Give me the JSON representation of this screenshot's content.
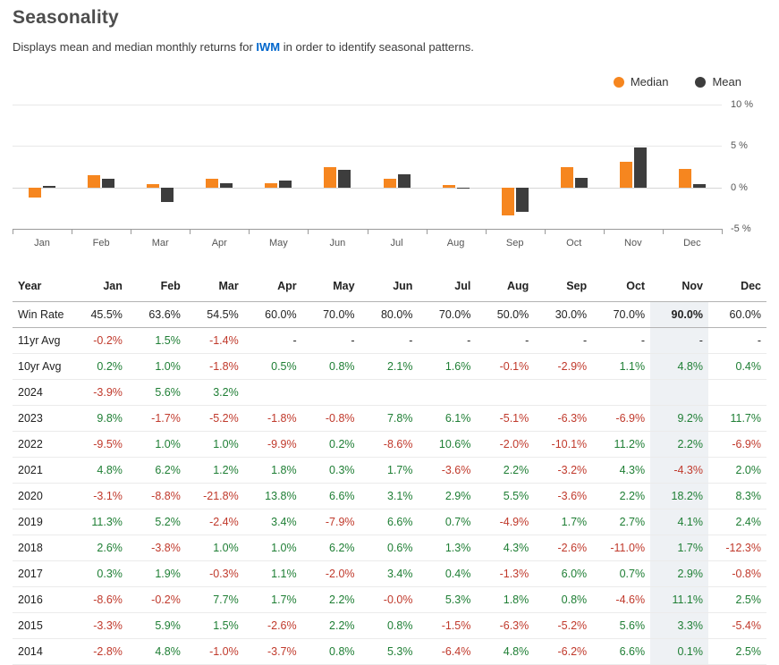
{
  "header": {
    "title": "Seasonality",
    "subtitle_before": "Displays mean and median monthly returns for ",
    "symbol": "IWM",
    "subtitle_after": " in order to identify seasonal patterns."
  },
  "colors": {
    "median": "#f6861f",
    "mean": "#3d3d3d",
    "negative": "#c0392b",
    "positive": "#1e7e34",
    "link": "#0066cc",
    "column_highlight": "#eef1f4"
  },
  "legend": [
    {
      "label": "Median",
      "color": "#f6861f"
    },
    {
      "label": "Mean",
      "color": "#3d3d3d"
    }
  ],
  "chart_data": {
    "type": "bar",
    "title": "Seasonality",
    "unit": "%",
    "categories": [
      "Jan",
      "Feb",
      "Mar",
      "Apr",
      "May",
      "Jun",
      "Jul",
      "Aug",
      "Sep",
      "Oct",
      "Nov",
      "Dec"
    ],
    "series": [
      {
        "name": "Median",
        "color": "#f6861f",
        "values": [
          -1.25,
          1.45,
          0.35,
          1.05,
          0.55,
          2.4,
          1.0,
          0.25,
          -3.4,
          2.45,
          3.1,
          2.2
        ]
      },
      {
        "name": "Mean",
        "color": "#3d3d3d",
        "values": [
          0.2,
          1.0,
          -1.8,
          0.5,
          0.8,
          2.1,
          1.6,
          -0.1,
          -2.9,
          1.1,
          4.8,
          0.4
        ]
      }
    ],
    "ylim": [
      -5,
      10
    ],
    "yticks": [
      {
        "value": 10,
        "label": "10 %"
      },
      {
        "value": 5,
        "label": "5 %"
      },
      {
        "value": 0,
        "label": "0 %"
      },
      {
        "value": -5,
        "label": "-5 %"
      }
    ],
    "grid": true,
    "legend_position": "top-right",
    "xlabel": "",
    "ylabel": ""
  },
  "table": {
    "highlight_column": "Nov",
    "columns": [
      "Year",
      "Jan",
      "Feb",
      "Mar",
      "Apr",
      "May",
      "Jun",
      "Jul",
      "Aug",
      "Sep",
      "Oct",
      "Nov",
      "Dec"
    ],
    "rows": [
      {
        "label": "Win Rate",
        "type": "winrate",
        "values": [
          "45.5%",
          "63.6%",
          "54.5%",
          "60.0%",
          "70.0%",
          "80.0%",
          "70.0%",
          "50.0%",
          "30.0%",
          "70.0%",
          "90.0%",
          "60.0%"
        ]
      },
      {
        "label": "11yr Avg",
        "values": [
          "-0.2%",
          "1.5%",
          "-1.4%",
          "-",
          "-",
          "-",
          "-",
          "-",
          "-",
          "-",
          "-",
          "-"
        ]
      },
      {
        "label": "10yr Avg",
        "values": [
          "0.2%",
          "1.0%",
          "-1.8%",
          "0.5%",
          "0.8%",
          "2.1%",
          "1.6%",
          "-0.1%",
          "-2.9%",
          "1.1%",
          "4.8%",
          "0.4%"
        ]
      },
      {
        "label": "2024",
        "values": [
          "-3.9%",
          "5.6%",
          "3.2%",
          "",
          "",
          "",
          "",
          "",
          "",
          "",
          "",
          ""
        ]
      },
      {
        "label": "2023",
        "values": [
          "9.8%",
          "-1.7%",
          "-5.2%",
          "-1.8%",
          "-0.8%",
          "7.8%",
          "6.1%",
          "-5.1%",
          "-6.3%",
          "-6.9%",
          "9.2%",
          "11.7%"
        ]
      },
      {
        "label": "2022",
        "values": [
          "-9.5%",
          "1.0%",
          "1.0%",
          "-9.9%",
          "0.2%",
          "-8.6%",
          "10.6%",
          "-2.0%",
          "-10.1%",
          "11.2%",
          "2.2%",
          "-6.9%"
        ]
      },
      {
        "label": "2021",
        "values": [
          "4.8%",
          "6.2%",
          "1.2%",
          "1.8%",
          "0.3%",
          "1.7%",
          "-3.6%",
          "2.2%",
          "-3.2%",
          "4.3%",
          "-4.3%",
          "2.0%"
        ]
      },
      {
        "label": "2020",
        "values": [
          "-3.1%",
          "-8.8%",
          "-21.8%",
          "13.8%",
          "6.6%",
          "3.1%",
          "2.9%",
          "5.5%",
          "-3.6%",
          "2.2%",
          "18.2%",
          "8.3%"
        ]
      },
      {
        "label": "2019",
        "values": [
          "11.3%",
          "5.2%",
          "-2.4%",
          "3.4%",
          "-7.9%",
          "6.6%",
          "0.7%",
          "-4.9%",
          "1.7%",
          "2.7%",
          "4.1%",
          "2.4%"
        ]
      },
      {
        "label": "2018",
        "values": [
          "2.6%",
          "-3.8%",
          "1.0%",
          "1.0%",
          "6.2%",
          "0.6%",
          "1.3%",
          "4.3%",
          "-2.6%",
          "-11.0%",
          "1.7%",
          "-12.3%"
        ]
      },
      {
        "label": "2017",
        "values": [
          "0.3%",
          "1.9%",
          "-0.3%",
          "1.1%",
          "-2.0%",
          "3.4%",
          "0.4%",
          "-1.3%",
          "6.0%",
          "0.7%",
          "2.9%",
          "-0.8%"
        ]
      },
      {
        "label": "2016",
        "values": [
          "-8.6%",
          "-0.2%",
          "7.7%",
          "1.7%",
          "2.2%",
          "-0.0%",
          "5.3%",
          "1.8%",
          "0.8%",
          "-4.6%",
          "11.1%",
          "2.5%"
        ]
      },
      {
        "label": "2015",
        "values": [
          "-3.3%",
          "5.9%",
          "1.5%",
          "-2.6%",
          "2.2%",
          "0.8%",
          "-1.5%",
          "-6.3%",
          "-5.2%",
          "5.6%",
          "3.3%",
          "-5.4%"
        ]
      },
      {
        "label": "2014",
        "values": [
          "-2.8%",
          "4.8%",
          "-1.0%",
          "-3.7%",
          "0.8%",
          "5.3%",
          "-6.4%",
          "4.8%",
          "-6.2%",
          "6.6%",
          "0.1%",
          "2.5%"
        ]
      }
    ]
  }
}
